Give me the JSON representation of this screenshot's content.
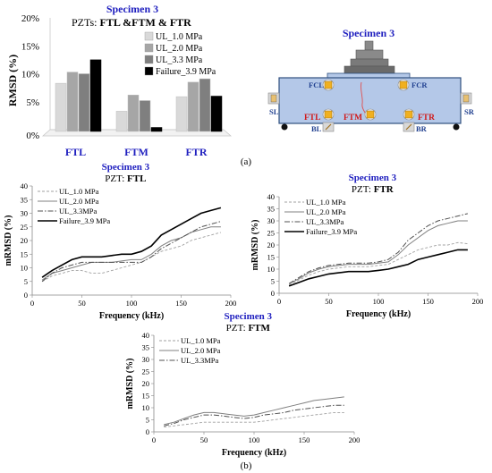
{
  "colors": {
    "title_blue": "#1f1fbf",
    "label_blue": "#1f3fbf",
    "red": "#d11a1a",
    "specimen_fill": "#b4c8e8",
    "specimen_stroke": "#2f4f7f",
    "pzt_fill": "#f0b020"
  },
  "panel_a": {
    "bar_chart": {
      "title": "Specimen 3",
      "subtitle_prefix": "PZTs: ",
      "subtitle_bold": "FTL &FTM & FTR",
      "ylabel": "RMSD (%)",
      "yticks": [
        "0%",
        "5%",
        "10%",
        "15%",
        "20%"
      ]
    },
    "diagram": {
      "title": "Specimen 3",
      "labels": {
        "fcl": "FCL",
        "fcr": "FCR",
        "ftl": "FTL",
        "ftm": "FTM",
        "ftr": "FTR",
        "sl": "SL",
        "sr": "SR",
        "bl": "BL",
        "br": "BR"
      }
    },
    "caption": "(a)"
  },
  "panel_b": {
    "ftl": {
      "title": "Specimen 3",
      "pzt_prefix": "PZT: ",
      "pzt_name": "FTL",
      "xlabel": "Frequency (kHz)",
      "ylabel": "mRMSD (%)",
      "xticks": [
        "0",
        "50",
        "100",
        "150",
        "200"
      ],
      "yticks": [
        "0",
        "5",
        "10",
        "15",
        "20",
        "25",
        "30",
        "35",
        "40"
      ]
    },
    "ftr": {
      "title": "Specimen 3",
      "pzt_prefix": "PZT: ",
      "pzt_name": "FTR",
      "xlabel": "Frequency (kHz)",
      "ylabel": "mRMSD (%)",
      "xticks": [
        "0",
        "50",
        "100",
        "150",
        "200"
      ],
      "yticks": [
        "0",
        "5",
        "10",
        "15",
        "20",
        "25",
        "30",
        "35",
        "40"
      ]
    },
    "ftm": {
      "title": "Specimen 3",
      "pzt_prefix": "PZT: ",
      "pzt_name": "FTM",
      "xlabel": "Frequency (kHz)",
      "ylabel": "mRMSD (%)",
      "xticks": [
        "0",
        "50",
        "100",
        "150",
        "200"
      ],
      "yticks": [
        "0",
        "5",
        "10",
        "15",
        "20",
        "25",
        "30",
        "35",
        "40"
      ]
    },
    "caption": "(b)"
  },
  "chart_data": [
    {
      "type": "bar",
      "title": "Specimen 3",
      "subtitle": "PZTs: FTL &FTM & FTR",
      "xlabel": "",
      "ylabel": "RMSD (%)",
      "ylim": [
        0,
        20
      ],
      "categories": [
        "FTL",
        "FTM",
        "FTR"
      ],
      "series": [
        {
          "name": "UL_1.0 MPa",
          "color": "#d9d9d9",
          "values": [
            8.3,
            3.3,
            5.9
          ]
        },
        {
          "name": "UL_2.0 MPa",
          "color": "#a6a6a6",
          "values": [
            10.3,
            6.2,
            8.5
          ]
        },
        {
          "name": "UL_3.3 MPa",
          "color": "#7f7f7f",
          "values": [
            10.0,
            5.2,
            9.1
          ]
        },
        {
          "name": "Failure_3.9 MPa",
          "color": "#000000",
          "values": [
            12.5,
            0.4,
            6.0
          ]
        }
      ],
      "legend": "top-right",
      "grid": false
    },
    {
      "type": "line",
      "title": "Specimen 3",
      "subtitle": "PZT: FTL",
      "xlabel": "Frequency (kHz)",
      "ylabel": "mRMSD (%)",
      "xlim": [
        0,
        200
      ],
      "ylim": [
        0,
        40
      ],
      "x": [
        10,
        20,
        30,
        40,
        50,
        60,
        70,
        80,
        90,
        100,
        110,
        120,
        130,
        140,
        150,
        160,
        170,
        180,
        190
      ],
      "series": [
        {
          "name": "UL_1.0 MPa",
          "style": "dashed",
          "color": "#a0a0a0",
          "values": [
            5,
            7,
            8,
            9,
            9,
            8,
            8,
            9,
            10,
            11,
            12,
            14,
            16,
            17,
            18,
            20,
            21,
            22,
            23
          ]
        },
        {
          "name": "UL_2.0 MPa",
          "style": "solid",
          "color": "#808080",
          "values": [
            5.5,
            8,
            9,
            10,
            11,
            12,
            12,
            12,
            12.5,
            13,
            13,
            15,
            18,
            20,
            21,
            23,
            24,
            25,
            25
          ]
        },
        {
          "name": "UL_3.3MPa",
          "style": "dashdot",
          "color": "#505050",
          "values": [
            5,
            8,
            10,
            11,
            12,
            12,
            12,
            12,
            12,
            12,
            12,
            14,
            17,
            19,
            21,
            23,
            25,
            26,
            27
          ]
        },
        {
          "name": "Failure_3.9 MPa",
          "style": "solid",
          "color": "#000000",
          "values": [
            6.5,
            9,
            11,
            13,
            14,
            14,
            14,
            14.5,
            15,
            15,
            16,
            18,
            22,
            24,
            26,
            28,
            30,
            31,
            32
          ]
        }
      ],
      "legend": "top-left",
      "grid": false
    },
    {
      "type": "line",
      "title": "Specimen 3",
      "subtitle": "PZT: FTR",
      "xlabel": "Frequency (kHz)",
      "ylabel": "mRMSD (%)",
      "xlim": [
        0,
        200
      ],
      "ylim": [
        0,
        40
      ],
      "x": [
        10,
        20,
        30,
        40,
        50,
        60,
        70,
        80,
        90,
        100,
        110,
        120,
        130,
        140,
        150,
        160,
        170,
        180,
        190
      ],
      "series": [
        {
          "name": "UL_1.0 MPa",
          "style": "dashed",
          "color": "#a0a0a0",
          "values": [
            3.5,
            5.5,
            7.5,
            9,
            10,
            10.5,
            11,
            11,
            11,
            11.5,
            12,
            14,
            16,
            18,
            19,
            20,
            20,
            21,
            20.5
          ]
        },
        {
          "name": "UL_2.0 MPa",
          "style": "solid",
          "color": "#808080",
          "values": [
            4,
            6,
            8.5,
            10,
            11,
            11.5,
            12,
            12,
            12,
            12.5,
            13,
            16,
            20,
            23,
            26,
            28,
            29,
            30,
            30
          ]
        },
        {
          "name": "UL_3.3MPa",
          "style": "dashdot",
          "color": "#505050",
          "values": [
            4,
            6.5,
            9,
            10.5,
            11.5,
            12,
            12.5,
            12.5,
            12.5,
            13,
            14,
            17,
            22,
            25,
            28,
            30,
            31,
            32,
            33
          ]
        },
        {
          "name": "Failure_3.9 MPa",
          "style": "solid",
          "color": "#000000",
          "values": [
            3,
            4.5,
            6,
            7,
            8,
            8.5,
            9,
            9,
            9,
            9.5,
            10,
            11,
            12,
            14,
            15,
            16,
            17,
            18,
            18
          ]
        }
      ],
      "legend": "top-left",
      "grid": false
    },
    {
      "type": "line",
      "title": "Specimen 3",
      "subtitle": "PZT: FTM",
      "xlabel": "Frequency (kHz)",
      "ylabel": "mRMSD (%)",
      "xlim": [
        0,
        200
      ],
      "ylim": [
        0,
        40
      ],
      "x": [
        10,
        20,
        30,
        40,
        50,
        60,
        70,
        80,
        90,
        100,
        110,
        120,
        130,
        140,
        150,
        160,
        170,
        180,
        190
      ],
      "series": [
        {
          "name": "UL_1.0 MPa",
          "style": "dashed",
          "color": "#a0a0a0",
          "values": [
            2,
            2.5,
            3,
            3.5,
            4,
            4,
            4,
            4,
            4,
            4,
            4.5,
            5,
            5.5,
            6,
            6.5,
            7,
            7.5,
            8,
            8
          ]
        },
        {
          "name": "UL_2.0 MPa",
          "style": "solid",
          "color": "#808080",
          "values": [
            3,
            4,
            5.5,
            7,
            8,
            8,
            7.5,
            7,
            6.5,
            7,
            8,
            9,
            10,
            11,
            12,
            13,
            13.5,
            14,
            14.5
          ]
        },
        {
          "name": "UL_3.3MPa",
          "style": "dashdot",
          "color": "#505050",
          "values": [
            2.5,
            3.5,
            5,
            6,
            7,
            7,
            6.5,
            6,
            5.5,
            6,
            7,
            7.5,
            8,
            9,
            9.5,
            10,
            10.5,
            11,
            11
          ]
        }
      ],
      "legend": "top-left",
      "grid": false
    }
  ]
}
